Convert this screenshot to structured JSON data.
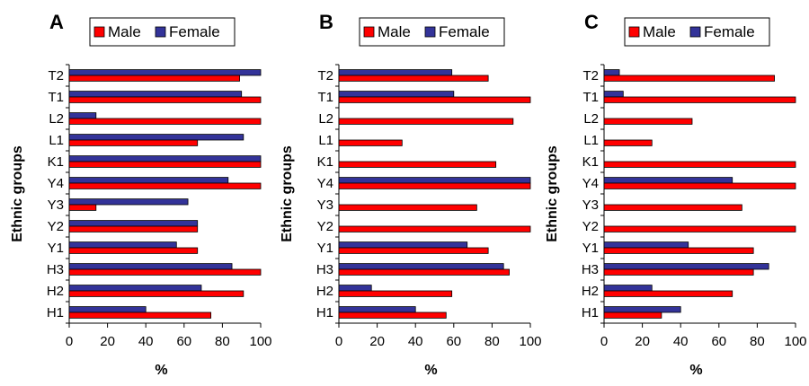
{
  "chart_data": [
    {
      "type": "bar",
      "orientation": "horizontal",
      "panel_label": "A",
      "categories": [
        "T2",
        "T1",
        "L2",
        "L1",
        "K1",
        "Y4",
        "Y3",
        "Y2",
        "Y1",
        "H3",
        "H2",
        "H1"
      ],
      "series": [
        {
          "name": "Male",
          "color": "#ff0000",
          "values": [
            89,
            100,
            100,
            67,
            100,
            100,
            14,
            67,
            67,
            100,
            91,
            74
          ]
        },
        {
          "name": "Female",
          "color": "#333399",
          "values": [
            100,
            90,
            14,
            91,
            100,
            83,
            62,
            67,
            56,
            85,
            69,
            40
          ]
        }
      ],
      "xlabel": "%",
      "ylabel": "Ethnic groups",
      "xlim": [
        0,
        100
      ],
      "xticks": [
        0,
        20,
        40,
        60,
        80,
        100
      ],
      "legend": "top"
    },
    {
      "type": "bar",
      "orientation": "horizontal",
      "panel_label": "B",
      "categories": [
        "T2",
        "T1",
        "L2",
        "L1",
        "K1",
        "Y4",
        "Y3",
        "Y2",
        "Y1",
        "H3",
        "H2",
        "H1"
      ],
      "series": [
        {
          "name": "Male",
          "color": "#ff0000",
          "values": [
            78,
            100,
            91,
            33,
            82,
            100,
            72,
            100,
            78,
            89,
            59,
            56
          ]
        },
        {
          "name": "Female",
          "color": "#333399",
          "values": [
            59,
            60,
            0,
            0,
            0,
            100,
            0,
            0,
            67,
            86,
            17,
            40
          ]
        }
      ],
      "xlabel": "%",
      "ylabel": "Ethnic groups",
      "xlim": [
        0,
        100
      ],
      "xticks": [
        0,
        20,
        40,
        60,
        80,
        100
      ],
      "legend": "top"
    },
    {
      "type": "bar",
      "orientation": "horizontal",
      "panel_label": "C",
      "categories": [
        "T2",
        "T1",
        "L2",
        "L1",
        "K1",
        "Y4",
        "Y3",
        "Y2",
        "Y1",
        "H3",
        "H2",
        "H1"
      ],
      "series": [
        {
          "name": "Male",
          "color": "#ff0000",
          "values": [
            89,
            100,
            46,
            25,
            100,
            100,
            72,
            100,
            78,
            78,
            67,
            30
          ]
        },
        {
          "name": "Female",
          "color": "#333399",
          "values": [
            8,
            10,
            0,
            0,
            0,
            67,
            0,
            0,
            44,
            86,
            25,
            40
          ]
        }
      ],
      "xlabel": "%",
      "ylabel": "Ethnic groups",
      "xlim": [
        0,
        100
      ],
      "xticks": [
        0,
        20,
        40,
        60,
        80,
        100
      ],
      "legend": "top"
    }
  ]
}
